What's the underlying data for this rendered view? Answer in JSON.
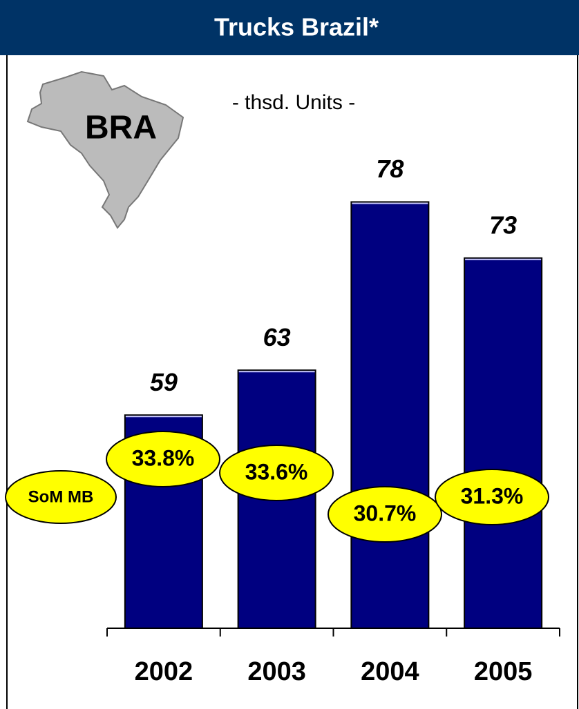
{
  "chart_data": {
    "type": "bar",
    "title": "Trucks Brazil*",
    "subtitle": "- thsd. Units -",
    "map_label": "BRA",
    "categories": [
      "2002",
      "2003",
      "2004",
      "2005"
    ],
    "values": [
      59,
      63,
      78,
      73
    ],
    "color": "#000080",
    "ylim": [
      40,
      80
    ],
    "share": {
      "name": "SoM MB",
      "values": [
        33.8,
        33.6,
        30.7,
        31.3
      ],
      "value_labels": [
        "33.8%",
        "33.6%",
        "30.7%",
        "31.3%"
      ],
      "color": "#ffff00"
    }
  }
}
